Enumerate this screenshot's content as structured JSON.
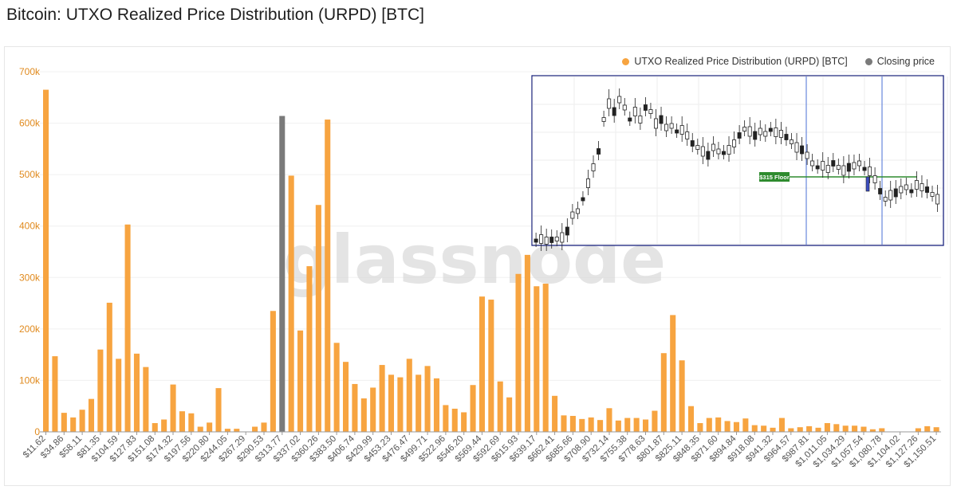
{
  "page": {
    "title": "Bitcoin: UTXO Realized Price Distribution (URPD) [BTC]",
    "watermark": "glassnode"
  },
  "legend": {
    "items": [
      {
        "label": "UTXO Realized Price Distribution (URPD) [BTC]",
        "color": "#f7a440"
      },
      {
        "label": "Closing price",
        "color": "#7a7a7a"
      }
    ]
  },
  "inset": {
    "floor_label": "$315 Floor",
    "floor_color": "#2e8b2e",
    "border_color": "#1a237e"
  },
  "chart_data": {
    "type": "bar",
    "title": "Bitcoin: UTXO Realized Price Distribution (URPD) [BTC]",
    "ylim": [
      0,
      700000
    ],
    "yticks": [
      "0",
      "100k",
      "200k",
      "300k",
      "400k",
      "500k",
      "600k",
      "700k"
    ],
    "xticks": [
      "$11.62",
      "$34.86",
      "$58.11",
      "$81.35",
      "$104.59",
      "$127.83",
      "$151.08",
      "$174.32",
      "$197.56",
      "$220.80",
      "$244.05",
      "$267.29",
      "$290.53",
      "$313.77",
      "$337.02",
      "$360.26",
      "$383.50",
      "$406.74",
      "$429.99",
      "$453.23",
      "$476.47",
      "$499.71",
      "$522.96",
      "$546.20",
      "$569.44",
      "$592.69",
      "$615.93",
      "$639.17",
      "$662.41",
      "$685.66",
      "$708.90",
      "$732.14",
      "$755.38",
      "$778.63",
      "$801.87",
      "$825.11",
      "$848.35",
      "$871.60",
      "$894.84",
      "$918.08",
      "$941.32",
      "$964.57",
      "$987.81",
      "$1,011.05",
      "$1,034.29",
      "$1,057.54",
      "$1,080.78",
      "$1,104.02",
      "$1,127.26",
      "$1,150.51"
    ],
    "closing_price_bar_index": 26,
    "series": [
      {
        "name": "UTXO Realized Price Distribution (URPD) [BTC]",
        "color": "#f7a440",
        "values": [
          665000,
          147000,
          37000,
          28000,
          43000,
          64000,
          160000,
          251000,
          142000,
          403000,
          152000,
          126000,
          17000,
          24000,
          92000,
          40000,
          36000,
          10000,
          18000,
          85000,
          6000,
          6000,
          0,
          10000,
          18000,
          235000,
          614000,
          498000,
          197000,
          322000,
          441000,
          607000,
          173000,
          136000,
          93000,
          65000,
          86000,
          130000,
          111000,
          106000,
          142000,
          111000,
          128000,
          104000,
          52000,
          45000,
          38000,
          91000,
          263000,
          257000,
          98000,
          67000,
          307000,
          344000,
          283000,
          288000,
          70000,
          32000,
          31000,
          25000,
          28000,
          23000,
          46000,
          22000,
          27000,
          27000,
          24000,
          41000,
          153000,
          227000,
          139000,
          50000,
          17000,
          27000,
          28000,
          21000,
          19000,
          26000,
          13000,
          12000,
          8000,
          27000,
          7000,
          9000,
          11000,
          8000,
          17000,
          15000,
          12000,
          12000,
          10000,
          5000,
          7000,
          0,
          0,
          0,
          7000,
          11000,
          9000
        ]
      },
      {
        "name": "Closing price",
        "color": "#7a7a7a"
      }
    ]
  }
}
